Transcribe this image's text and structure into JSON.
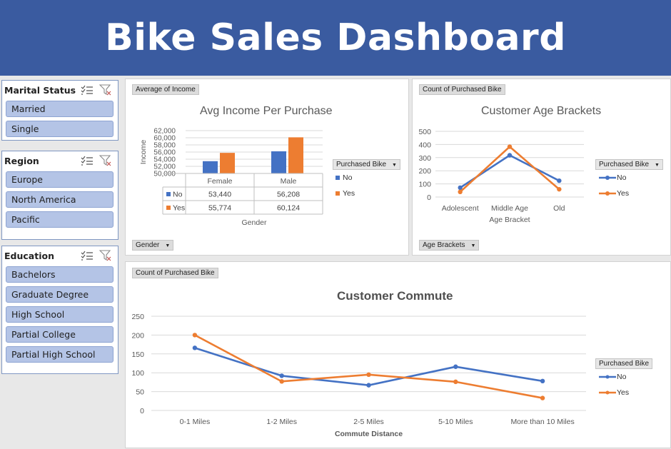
{
  "header": {
    "title": "Bike Sales Dashboard"
  },
  "slicers": {
    "marital_status": {
      "title": "Marital Status",
      "items": [
        "Married",
        "Single"
      ]
    },
    "region": {
      "title": "Region",
      "items": [
        "Europe",
        "North America",
        "Pacific"
      ]
    },
    "education": {
      "title": "Education",
      "items": [
        "Bachelors",
        "Graduate Degree",
        "High School",
        "Partial College",
        "Partial High School"
      ]
    }
  },
  "colors": {
    "no": "#4472c4",
    "yes": "#ed7d31",
    "banner": "#3a5ba0",
    "slicer_item": "#b4c4e6"
  },
  "income_panel": {
    "value_field": "Average of Income",
    "axis_field": "Gender",
    "legend_field": "Purchased Bike",
    "legend_no": "No",
    "legend_yes": "Yes"
  },
  "age_panel": {
    "value_field": "Count of Purchased Bike",
    "axis_field": "Age Brackets",
    "legend_field": "Purchased Bike",
    "legend_no": "No",
    "legend_yes": "Yes"
  },
  "commute_panel": {
    "value_field": "Count of Purchased Bike",
    "legend_field": "Purchased Bike",
    "legend_no": "No",
    "legend_yes": "Yes"
  },
  "chart_data": [
    {
      "type": "bar",
      "title": "Avg Income Per Purchase",
      "xlabel": "Gender",
      "ylabel": "Income",
      "categories": [
        "Female",
        "Male"
      ],
      "series": [
        {
          "name": "No",
          "values": [
            53440,
            56208
          ]
        },
        {
          "name": "Yes",
          "values": [
            55774,
            60124
          ]
        }
      ],
      "table": [
        {
          "name": "No",
          "values": [
            "53,440",
            "56,208"
          ]
        },
        {
          "name": "Yes",
          "values": [
            "55,774",
            "60,124"
          ]
        }
      ],
      "ylim": [
        50000,
        62000
      ],
      "yticks": [
        "50,000",
        "52,000",
        "54,000",
        "56,000",
        "58,000",
        "60,000",
        "62,000"
      ],
      "legend": "right",
      "grid": true
    },
    {
      "type": "line",
      "title": "Customer Age Brackets",
      "xlabel": "Age Bracket",
      "categories": [
        "Adolescent",
        "Middle Age",
        "Old"
      ],
      "series": [
        {
          "name": "No",
          "values": [
            71,
            318,
            124
          ]
        },
        {
          "name": "Yes",
          "values": [
            39,
            383,
            59
          ]
        }
      ],
      "ylim": [
        0,
        500
      ],
      "yticks": [
        "0",
        "100",
        "200",
        "300",
        "400",
        "500"
      ],
      "legend": "right",
      "grid": true
    },
    {
      "type": "line",
      "title": "Customer Commute",
      "xlabel": "Commute Distance",
      "categories": [
        "0-1 Miles",
        "1-2 Miles",
        "2-5 Miles",
        "5-10 Miles",
        "More than 10 Miles"
      ],
      "series": [
        {
          "name": "No",
          "values": [
            166,
            92,
            67,
            116,
            78
          ]
        },
        {
          "name": "Yes",
          "values": [
            200,
            77,
            95,
            76,
            33
          ]
        }
      ],
      "ylim": [
        0,
        250
      ],
      "yticks": [
        "0",
        "50",
        "100",
        "150",
        "200",
        "250"
      ],
      "legend": "right",
      "grid": true
    }
  ]
}
